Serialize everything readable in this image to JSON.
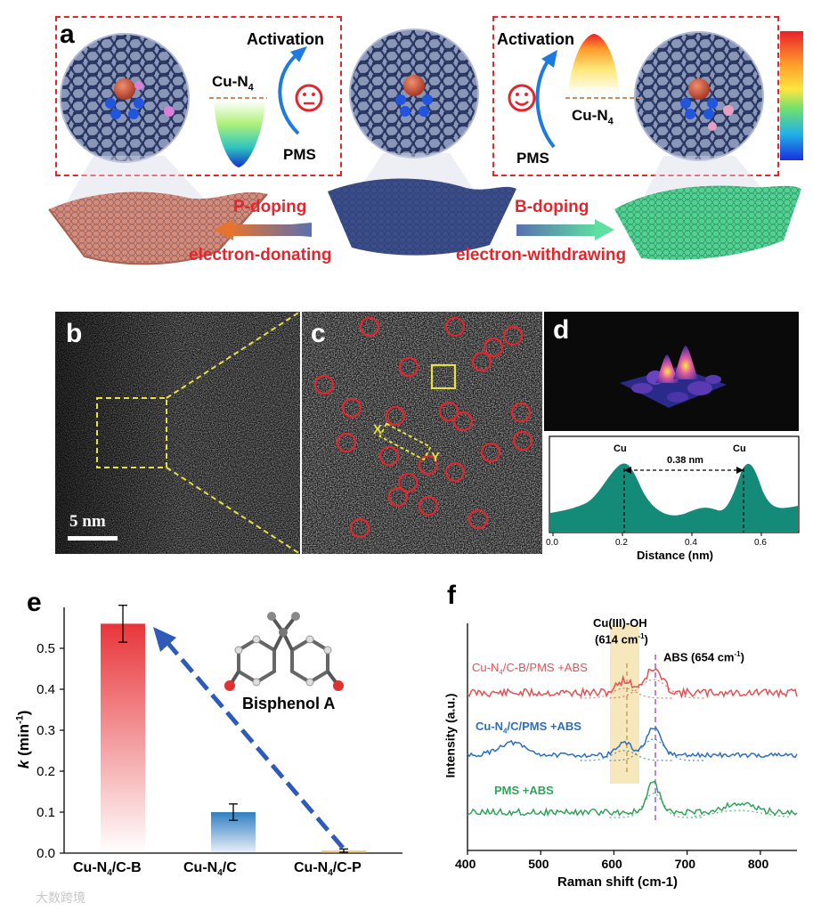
{
  "panel_a": {
    "label": "a",
    "left": {
      "activation": "Activation",
      "cu": "Cu-N",
      "cu_sub": "4",
      "pms": "PMS",
      "doping": "P-doping",
      "effect": "electron-donating"
    },
    "right": {
      "activation": "Activation",
      "cu": "Cu-N",
      "cu_sub": "4",
      "pms": "PMS",
      "doping": "B-doping",
      "effect": "electron-withdrawing"
    },
    "colors": {
      "p_sheet": "#d88a78",
      "center_sheet": "#3b4e8c",
      "b_sheet": "#4fd48e",
      "dash": "#e2262d"
    }
  },
  "panel_b": {
    "label": "b",
    "scale_bar": "5 nm"
  },
  "panel_c": {
    "label": "c",
    "x": "X",
    "y": "Y"
  },
  "panel_d": {
    "label": "d",
    "peak1": "Cu",
    "peak2": "Cu",
    "distance": "0.38 nm",
    "xlabel": "Distance (nm)",
    "xticks": [
      "0.0",
      "0.2",
      "0.4",
      "0.6"
    ]
  },
  "panel_e": {
    "label": "e",
    "molecule": "Bisphenol A"
  },
  "panel_f": {
    "label": "f",
    "annot1": "Cu(III)-OH",
    "annot2a": "(614 cm",
    "annot2b": "-1",
    "annot2c": ")",
    "annot3a": "ABS (654 cm",
    "annot3b": "-1",
    "annot3c": ")"
  },
  "watermark": "大数跨境",
  "chart_data": [
    {
      "type": "bar",
      "panel": "e",
      "categories": [
        "Cu-N4/C-B",
        "Cu-N4/C",
        "Cu-N4/C-P"
      ],
      "values": [
        0.56,
        0.1,
        0.006
      ],
      "errors": [
        0.045,
        0.02,
        0.004
      ],
      "ylabel": "k (min-1)",
      "ylim": [
        0,
        0.6
      ],
      "yticks": [
        "0.0",
        "0.1",
        "0.2",
        "0.3",
        "0.4",
        "0.5"
      ],
      "colors": [
        "#e8353a",
        "#2f7fc1",
        "#e8b84a"
      ]
    },
    {
      "type": "line",
      "panel": "f",
      "xlabel": "Raman shift (cm-1)",
      "ylabel": "Intensity (a.u.)",
      "xlim": [
        400,
        850
      ],
      "xticks": [
        "400",
        "500",
        "600",
        "700",
        "800"
      ],
      "series": [
        {
          "name": "Cu-N4/C-B/PMS +ABS",
          "color": "#e05256",
          "peaks": [
            614,
            654
          ]
        },
        {
          "name": "Cu-N4/C/PMS +ABS",
          "color": "#2b6fc0",
          "peaks": [
            460,
            614,
            654
          ]
        },
        {
          "name": "PMS +ABS",
          "color": "#2fa35a",
          "peaks": [
            654,
            770
          ]
        }
      ]
    }
  ]
}
